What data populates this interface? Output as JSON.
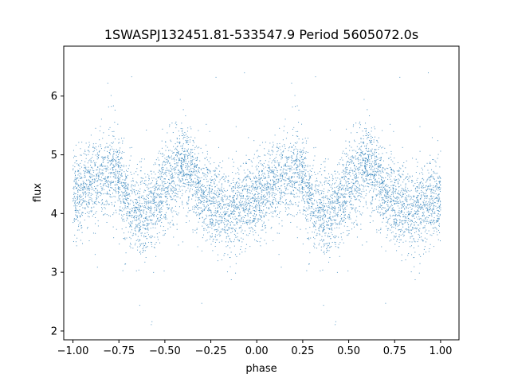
{
  "chart_data": {
    "type": "scatter",
    "title": "1SWASPJ132451.81-533547.9 Period 5605072.0s",
    "xlabel": "phase",
    "ylabel": "flux",
    "xlim": [
      -1.05,
      1.1
    ],
    "ylim": [
      1.85,
      6.85
    ],
    "xticks": [
      -1.0,
      -0.75,
      -0.5,
      -0.25,
      0.0,
      0.25,
      0.5,
      0.75,
      1.0
    ],
    "xtick_labels": [
      "−1.00",
      "−0.75",
      "−0.50",
      "−0.25",
      "0.00",
      "0.25",
      "0.50",
      "0.75",
      "1.00"
    ],
    "yticks": [
      2,
      3,
      4,
      5,
      6
    ],
    "ytick_labels": [
      "2",
      "3",
      "4",
      "5",
      "6"
    ],
    "grid": false,
    "point_color": "#1f77b4",
    "phase_range": [
      -1.0,
      1.0
    ],
    "trend_profile": {
      "phase": [
        0.0,
        0.05,
        0.1,
        0.15,
        0.2,
        0.25,
        0.3,
        0.35,
        0.4,
        0.45,
        0.5,
        0.55,
        0.6,
        0.65,
        0.7,
        0.75,
        0.8,
        0.85,
        0.9,
        0.95,
        1.0
      ],
      "flux": [
        4.25,
        4.4,
        4.55,
        4.6,
        4.75,
        4.7,
        4.1,
        3.95,
        4.05,
        4.2,
        4.45,
        4.7,
        4.85,
        4.6,
        4.3,
        4.2,
        4.1,
        4.05,
        4.15,
        4.2,
        4.25
      ]
    },
    "scatter_std": 0.35,
    "outlier_flux_range": [
      2.1,
      6.6
    ],
    "n_points_per_cycle": 3500
  }
}
